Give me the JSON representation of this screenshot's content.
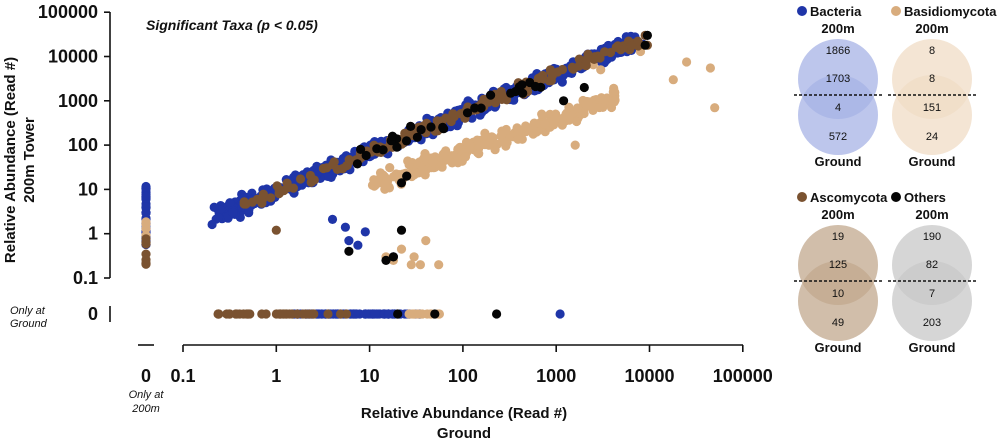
{
  "chart_data": {
    "type": "scatter",
    "annotation": "Significant Taxa (p < 0.05)",
    "xlabel_lines": [
      "Relative Abundance (Read #)",
      "Ground"
    ],
    "ylabel_lines": [
      "Relative Abundance (Read #)",
      "200m Tower"
    ],
    "xscale": "log",
    "yscale": "log",
    "x_ticks": [
      "0.1",
      "1",
      "10",
      "100",
      "1000",
      "10000",
      "100000"
    ],
    "y_ticks": [
      "100000",
      "10000",
      "1000",
      "100",
      "10",
      "1",
      "0.1"
    ],
    "x_zero_tick": "0",
    "y_zero_tick": "0",
    "x_zero_caption": [
      "Only at",
      "200m"
    ],
    "y_zero_caption": [
      "Only at",
      "Ground"
    ],
    "xlim": [
      0.1,
      100000
    ],
    "ylim": [
      0.1,
      100000
    ],
    "series": [
      {
        "name": "Bacteria",
        "color": "#1f35a8",
        "trend": {
          "x_start": 0.2,
          "x_end": 7000,
          "exponent": 0.88,
          "coef": 9.0,
          "spread": 0.55,
          "count": 620,
          "seed": 11
        },
        "only_ground": {
          "x_min": 1.5,
          "x_max": 40,
          "count": 80,
          "extra": [
            1100
          ],
          "seed": 21
        },
        "only_200m": {
          "y_min": 0.5,
          "y_max": 12,
          "count": 40,
          "seed": 31
        },
        "points": [
          [
            5.5,
            1.4
          ],
          [
            7.5,
            0.55
          ],
          [
            4.0,
            2.1
          ],
          [
            9.0,
            1.1
          ],
          [
            18,
            0.3
          ],
          [
            6,
            0.7
          ],
          [
            8500,
            19000
          ],
          [
            6000,
            15000
          ],
          [
            4500,
            12000
          ]
        ]
      },
      {
        "name": "Basidiomycota",
        "color": "#d8ac7d",
        "trend": {
          "x_start": 10,
          "x_end": 4500,
          "exponent": 0.75,
          "coef": 2.2,
          "spread": 0.6,
          "count": 260,
          "seed": 41
        },
        "only_ground": {
          "x_min": 20,
          "x_max": 60,
          "count": 12,
          "extra": [],
          "seed": 51
        },
        "only_200m": {
          "y_min": 0.7,
          "y_max": 2,
          "count": 4,
          "seed": 61
        },
        "points": [
          [
            25000,
            7500
          ],
          [
            45000,
            5500
          ],
          [
            50000,
            700
          ],
          [
            18000,
            3000
          ],
          [
            8000,
            13000
          ],
          [
            3000,
            5000
          ],
          [
            15,
            0.3
          ],
          [
            18,
            0.25
          ],
          [
            28,
            0.2
          ],
          [
            35,
            0.2
          ],
          [
            55,
            0.2
          ],
          [
            30,
            0.3
          ],
          [
            22,
            0.45
          ],
          [
            40,
            0.7
          ],
          [
            2500,
            6500
          ],
          [
            700,
            500
          ],
          [
            1600,
            100
          ]
        ]
      },
      {
        "name": "Ascomycota",
        "color": "#7a5230",
        "trend": {
          "x_start": 0.45,
          "x_end": 9000,
          "exponent": 0.88,
          "coef": 9.0,
          "spread": 0.4,
          "count": 170,
          "seed": 71
        },
        "only_ground": {
          "x_min": 0.2,
          "x_max": 6,
          "count": 35,
          "extra": [],
          "seed": 81
        },
        "only_200m": {
          "y_min": 0.2,
          "y_max": 1.5,
          "count": 8,
          "seed": 91
        },
        "points": [
          [
            9000,
            30000
          ],
          [
            9500,
            18000
          ],
          [
            700,
            3000
          ],
          [
            1,
            1.2
          ]
        ]
      },
      {
        "name": "Others",
        "color": "#050505",
        "trend": {
          "x_start": 5,
          "x_end": 700,
          "exponent": 0.88,
          "coef": 9.0,
          "spread": 0.5,
          "count": 26,
          "seed": 101
        },
        "only_ground": {
          "x_min": 20,
          "x_max": 20,
          "count": 1,
          "extra": [
            230,
            50
          ],
          "seed": 111
        },
        "only_200m": {
          "y_min": 1,
          "y_max": 1,
          "count": 0,
          "seed": 121
        },
        "points": [
          [
            6,
            0.4
          ],
          [
            15,
            0.25
          ],
          [
            18,
            0.3
          ],
          [
            22,
            14
          ],
          [
            25,
            20
          ],
          [
            22,
            1.2
          ],
          [
            8,
            80
          ],
          [
            9500,
            30000
          ],
          [
            9000,
            18000
          ],
          [
            2000,
            2000
          ],
          [
            600,
            2100
          ],
          [
            1200,
            1000
          ]
        ]
      }
    ]
  },
  "venns": [
    {
      "name": "Bacteria",
      "color": "#1f35a8",
      "fill": "#a7b3e6",
      "top_label": "200m",
      "bottom_label": "Ground",
      "top_only": "1866",
      "overlap_upper": "1703",
      "overlap_lower": "4",
      "bottom_only": "572"
    },
    {
      "name": "Basidiomycota",
      "color": "#d8ac7d",
      "fill": "#f0dcc5",
      "top_label": "200m",
      "bottom_label": "Ground",
      "top_only": "8",
      "overlap_upper": "8",
      "overlap_lower": "151",
      "bottom_only": "24"
    },
    {
      "name": "Ascomycota",
      "color": "#7a5230",
      "fill": "#c2a88e",
      "top_label": "200m",
      "bottom_label": "Ground",
      "top_only": "19",
      "overlap_upper": "125",
      "overlap_lower": "10",
      "bottom_only": "49"
    },
    {
      "name": "Others",
      "color": "#050505",
      "fill": "#c8c8c8",
      "top_label": "200m",
      "bottom_label": "Ground",
      "top_only": "190",
      "overlap_upper": "82",
      "overlap_lower": "7",
      "bottom_only": "203"
    }
  ]
}
